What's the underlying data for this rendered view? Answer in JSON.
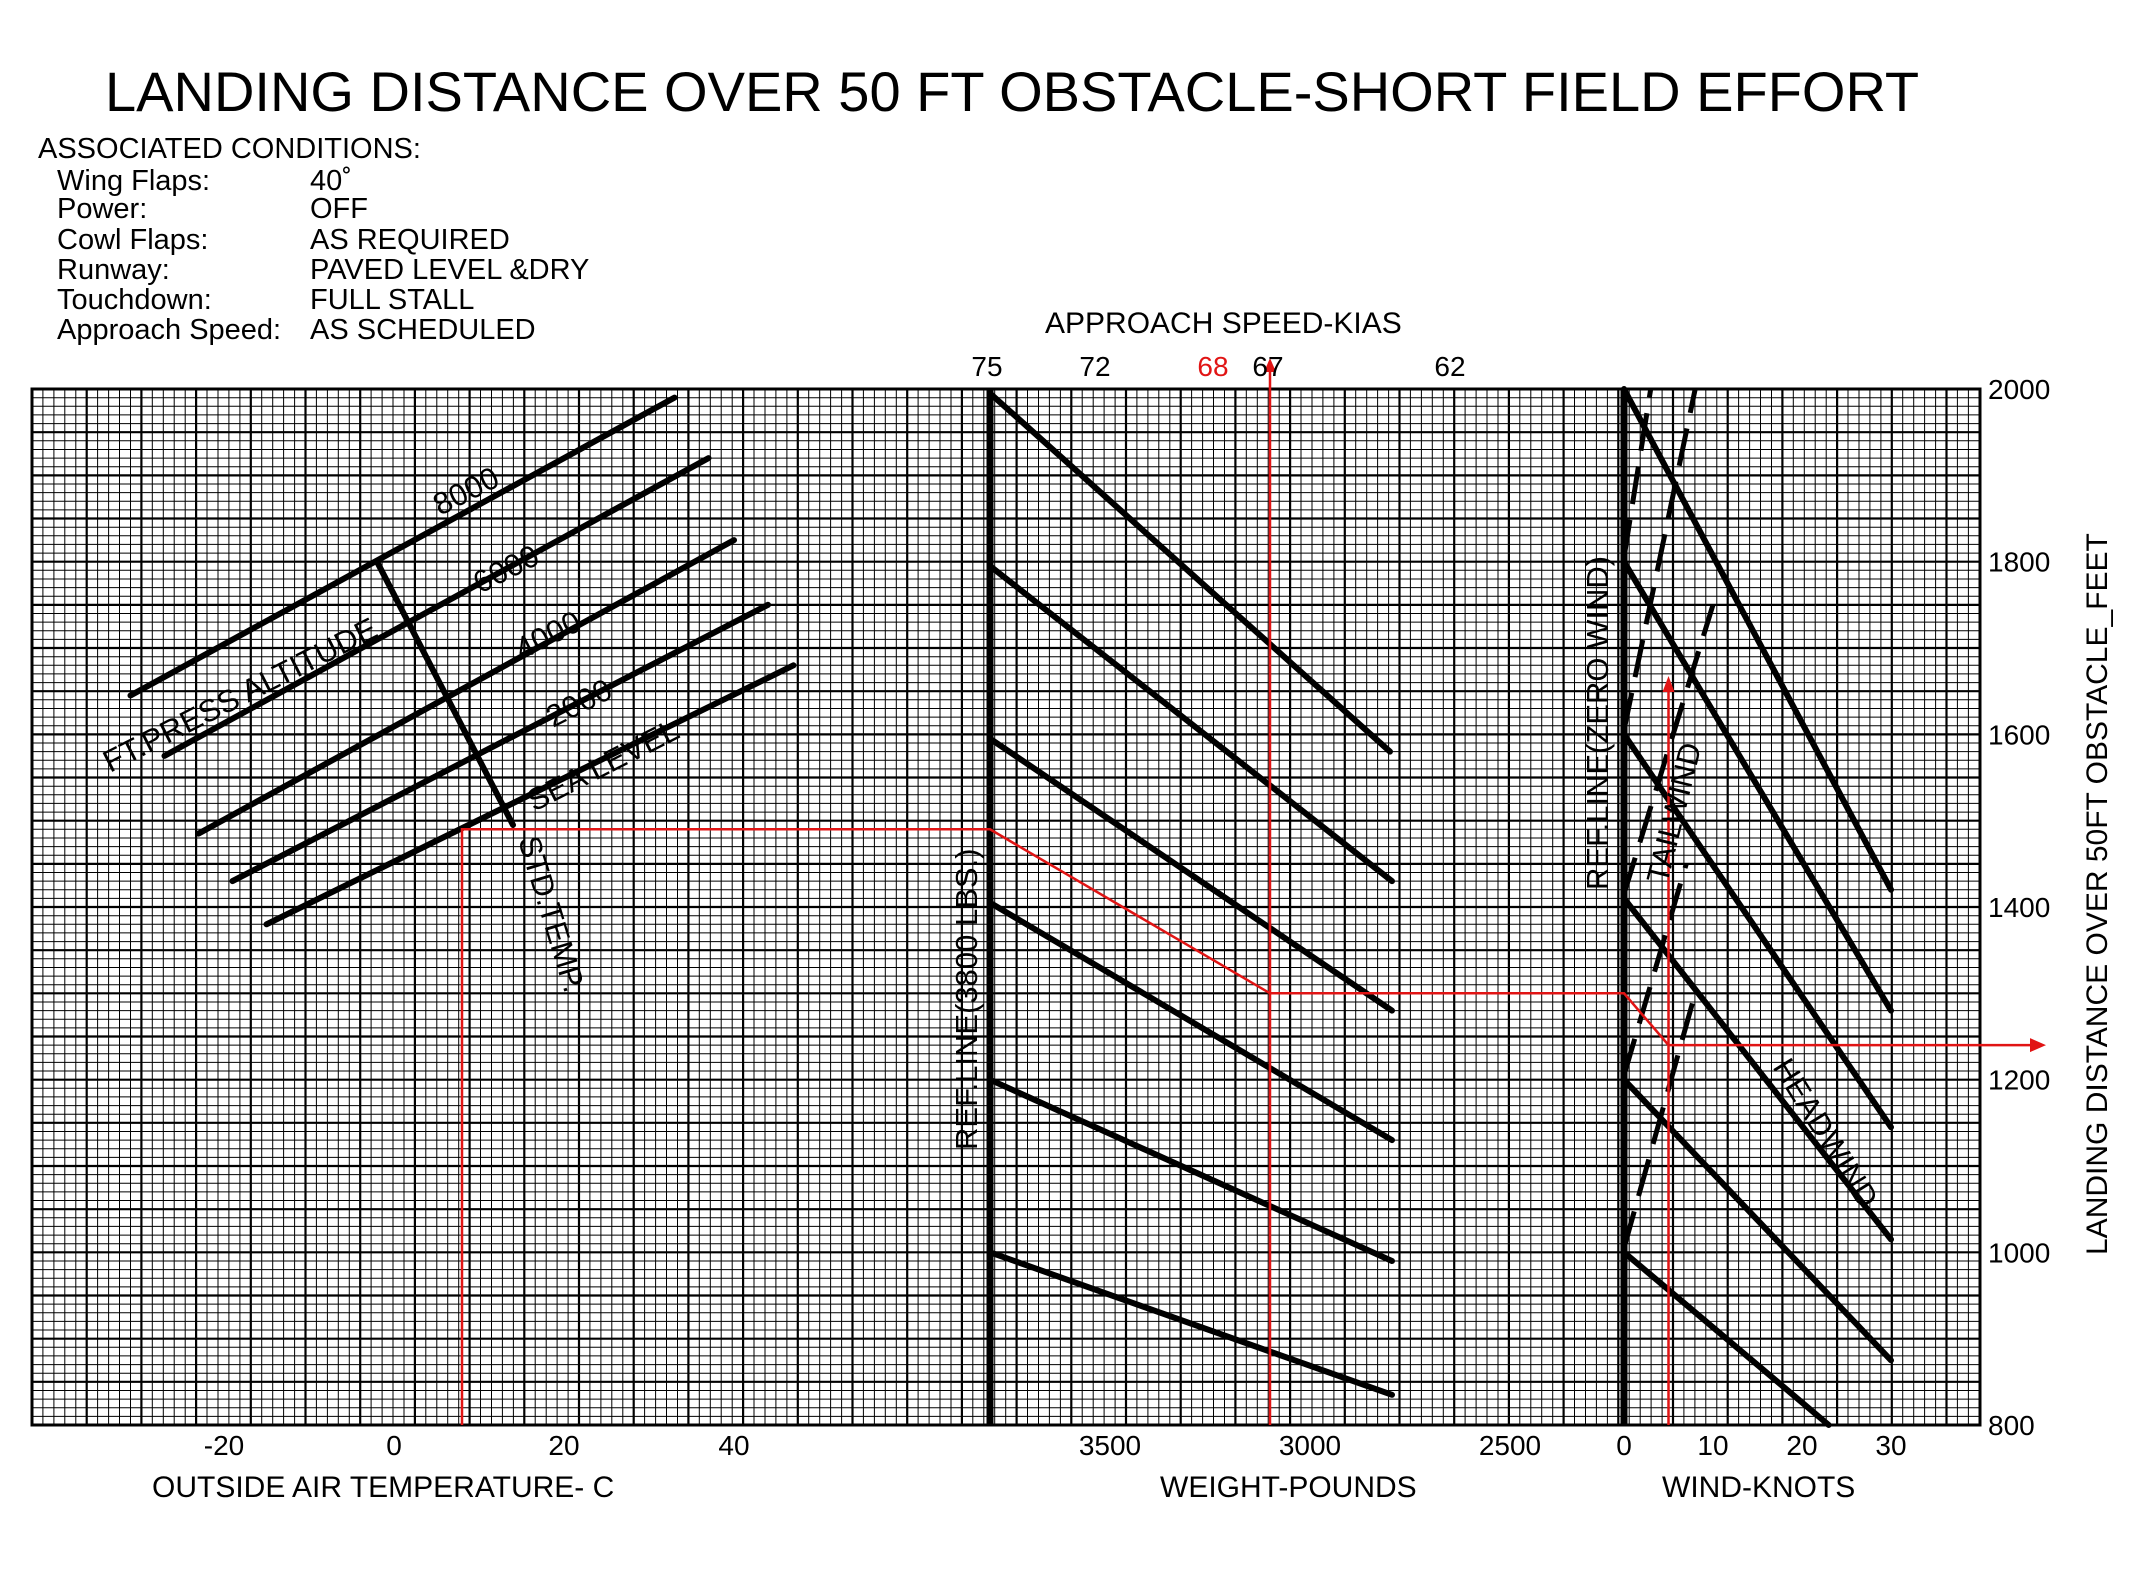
{
  "chart_data": {
    "type": "line",
    "title": "LANDING DISTANCE OVER 50 FT OBSTACLE-SHORT FIELD EFFORT",
    "conditions": {
      "heading": "ASSOCIATED  CONDITIONS:",
      "items": [
        {
          "label": "Wing Flaps:",
          "value": "40˚"
        },
        {
          "label": "Power:",
          "value": "OFF"
        },
        {
          "label": "Cowl Flaps:",
          "value": "AS REQUIRED"
        },
        {
          "label": "Runway:",
          "value": "PAVED LEVEL &DRY"
        },
        {
          "label": "Touchdown:",
          "value": "FULL STALL"
        },
        {
          "label": "Approach Speed:",
          "value": "AS SCHEDULED"
        }
      ]
    },
    "ylabel": "LANDING DISTANCE OVER 50FT OBSTACLE_FEET",
    "ylim": [
      800,
      2000
    ],
    "yticks": [
      "2000",
      "1800",
      "1600",
      "1400",
      "1200",
      "1000",
      "800"
    ],
    "panels": {
      "temperature": {
        "xlabel": "OUTSIDE AIR TEMPERATURE- C",
        "xticks": [
          "-20",
          "0",
          "20",
          "40"
        ],
        "xlim": [
          -40,
          67
        ],
        "altitude_label": "FT.PRESS ALTITUDE",
        "std_temp_label": "STD.TEMP.",
        "altitude_lines": [
          {
            "label": "8000",
            "x": [
              -31,
              33
            ],
            "y": [
              1645,
              1990
            ]
          },
          {
            "label": "6000",
            "x": [
              -27,
              37
            ],
            "y": [
              1575,
              1920
            ]
          },
          {
            "label": "4000",
            "x": [
              -23,
              40
            ],
            "y": [
              1485,
              1825
            ]
          },
          {
            "label": "2000",
            "x": [
              -19,
              44
            ],
            "y": [
              1430,
              1750
            ]
          },
          {
            "label": "SEA LEVEL",
            "x": [
              -15,
              47
            ],
            "y": [
              1380,
              1680
            ]
          }
        ],
        "std_temp_line": {
          "x": [
            -2,
            14
          ],
          "y": [
            1800,
            1495
          ]
        }
      },
      "weight": {
        "xlabel": "WEIGHT-POUNDS",
        "xticks": [
          "3500",
          "3000",
          "2500"
        ],
        "xlim": [
          3800,
          2600
        ],
        "ref_line_label": "REF.LINE(3800 LBS.)",
        "approach_speed_label": "APPROACH SPEED-KIAS",
        "approach_speeds": [
          "75",
          "72",
          "68",
          "67",
          "62"
        ],
        "guide_lines": [
          {
            "x": [
              3800,
              2800
            ],
            "y": [
              1995,
              1580
            ]
          },
          {
            "x": [
              3800,
              2795
            ],
            "y": [
              1795,
              1430
            ]
          },
          {
            "x": [
              3800,
              2795
            ],
            "y": [
              1595,
              1280
            ]
          },
          {
            "x": [
              3800,
              2795
            ],
            "y": [
              1405,
              1130
            ]
          },
          {
            "x": [
              3800,
              2795
            ],
            "y": [
              1200,
              990
            ]
          },
          {
            "x": [
              3800,
              2795
            ],
            "y": [
              1000,
              835
            ]
          }
        ]
      },
      "wind": {
        "xlabel": "WIND-KNOTS",
        "xticks": [
          "0",
          "10",
          "20",
          "30"
        ],
        "xlim": [
          0,
          39
        ],
        "ref_line_label": "REF.LINE(ZERO WIND)",
        "tailwind_label": "TAILWIND",
        "headwind_label": "HEADWIND",
        "headwind_lines": [
          {
            "x": [
              0,
              30
            ],
            "y": [
              2000,
              1420
            ]
          },
          {
            "x": [
              0,
              30
            ],
            "y": [
              1800,
              1280
            ]
          },
          {
            "x": [
              0,
              30
            ],
            "y": [
              1600,
              1145
            ]
          },
          {
            "x": [
              0,
              30
            ],
            "y": [
              1410,
              1015
            ]
          },
          {
            "x": [
              0,
              30
            ],
            "y": [
              1200,
              875
            ]
          },
          {
            "x": [
              0,
              23
            ],
            "y": [
              1000,
              800
            ]
          }
        ],
        "tailwind_lines": [
          {
            "x": [
              0,
              3
            ],
            "y": [
              1805,
              2000
            ]
          },
          {
            "x": [
              0,
              8
            ],
            "y": [
              1605,
              2000
            ]
          },
          {
            "x": [
              0,
              10
            ],
            "y": [
              1415,
              1750
            ]
          },
          {
            "x": [
              0,
              7
            ],
            "y": [
              1205,
              1450
            ]
          },
          {
            "x": [
              0,
              8
            ],
            "y": [
              1005,
              1300
            ]
          }
        ]
      }
    },
    "example_path": {
      "color": "#e11414",
      "oat": 8,
      "enter_distance": 1490,
      "weight": 3100,
      "after_weight": 1300,
      "wind": 5,
      "result": 1240,
      "approach_speed": "68"
    }
  }
}
